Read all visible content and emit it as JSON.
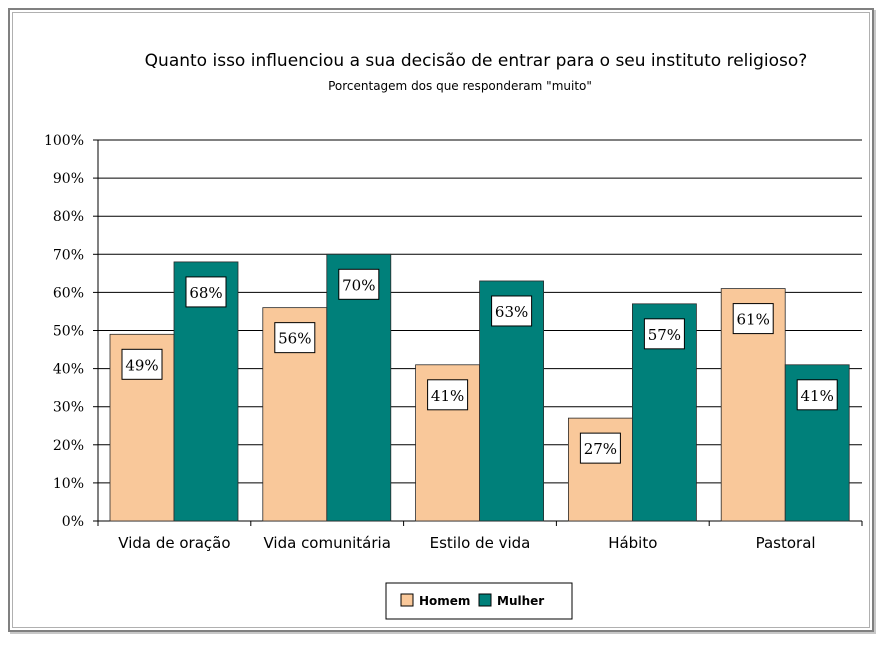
{
  "colors": {
    "homem": "#f9c89a",
    "mulher": "#00807a",
    "grid": "#000000"
  },
  "chart_data": {
    "type": "bar",
    "title": "Quanto isso influenciou a sua decisão de entrar para o seu instituto religioso?",
    "subtitle": "Porcentagem dos que responderam \"muito\"",
    "categories": [
      "Vida de oração",
      "Vida comunitária",
      "Estilo de vida",
      "Hábito",
      "Pastoral"
    ],
    "series": [
      {
        "name": "Homem",
        "values": [
          49,
          56,
          41,
          27,
          61
        ],
        "labels": [
          "49%",
          "56%",
          "41%",
          "27%",
          "61%"
        ]
      },
      {
        "name": "Mulher",
        "values": [
          68,
          70,
          63,
          57,
          41
        ],
        "labels": [
          "68%",
          "70%",
          "63%",
          "57%",
          "41%"
        ]
      }
    ],
    "ylim": [
      0,
      100
    ],
    "yticks": [
      "0%",
      "10%",
      "20%",
      "30%",
      "40%",
      "50%",
      "60%",
      "70%",
      "80%",
      "90%",
      "100%"
    ],
    "grid": true,
    "legend_position": "bottom"
  }
}
